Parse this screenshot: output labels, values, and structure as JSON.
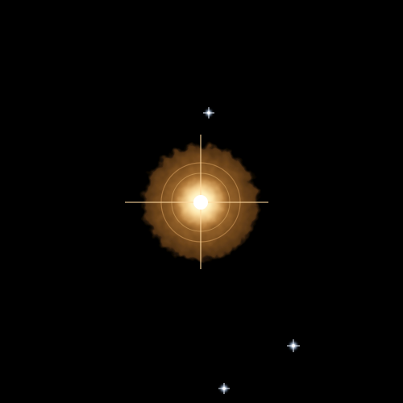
{
  "image": {
    "kind": "astronomical photograph",
    "background_color": "#000000"
  },
  "main_star": {
    "glow_color": "#a86a28",
    "ring_color": "#d9a060",
    "core_color": "#fff6d8",
    "spike_color": "#ffd9a0",
    "has_diffraction_spikes": true,
    "halo_rings": 2
  },
  "background_stars": {
    "count": 3,
    "color": "#cfe4ff",
    "has_diffraction_spikes": true
  }
}
